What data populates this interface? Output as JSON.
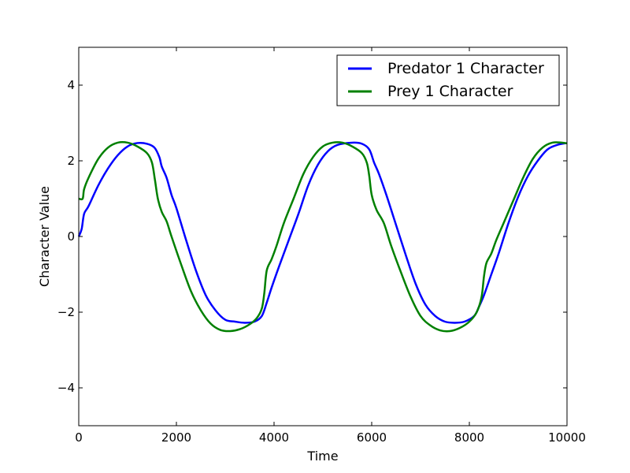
{
  "chart_data": {
    "type": "line",
    "xlabel": "Time",
    "ylabel": "Character Value",
    "xlim": [
      0,
      10000
    ],
    "ylim": [
      -5,
      5
    ],
    "xticks": [
      0,
      2000,
      4000,
      6000,
      8000,
      10000
    ],
    "yticks": [
      -4,
      -2,
      0,
      2,
      4
    ],
    "xtick_labels": [
      "0",
      "2000",
      "4000",
      "6000",
      "8000",
      "10000"
    ],
    "ytick_labels": [
      "−4",
      "−2",
      "0",
      "2",
      "4"
    ],
    "grid": false,
    "legend_position": "top-right",
    "series": [
      {
        "name": "Predator 1 Character",
        "color": "#0000ff",
        "points": [
          [
            0,
            0.0
          ],
          [
            60,
            0.2
          ],
          [
            110,
            0.6
          ],
          [
            200,
            0.8
          ],
          [
            400,
            1.35
          ],
          [
            600,
            1.8
          ],
          [
            800,
            2.15
          ],
          [
            1000,
            2.38
          ],
          [
            1200,
            2.47
          ],
          [
            1400,
            2.45
          ],
          [
            1550,
            2.35
          ],
          [
            1650,
            2.1
          ],
          [
            1700,
            1.85
          ],
          [
            1800,
            1.55
          ],
          [
            1900,
            1.1
          ],
          [
            2000,
            0.75
          ],
          [
            2200,
            -0.1
          ],
          [
            2400,
            -0.9
          ],
          [
            2600,
            -1.55
          ],
          [
            2800,
            -1.95
          ],
          [
            3000,
            -2.2
          ],
          [
            3200,
            -2.25
          ],
          [
            3400,
            -2.28
          ],
          [
            3600,
            -2.25
          ],
          [
            3750,
            -2.1
          ],
          [
            3850,
            -1.75
          ],
          [
            3950,
            -1.35
          ],
          [
            4100,
            -0.8
          ],
          [
            4300,
            -0.1
          ],
          [
            4500,
            0.6
          ],
          [
            4700,
            1.35
          ],
          [
            4900,
            1.9
          ],
          [
            5100,
            2.25
          ],
          [
            5300,
            2.42
          ],
          [
            5600,
            2.48
          ],
          [
            5800,
            2.45
          ],
          [
            5950,
            2.3
          ],
          [
            6050,
            1.95
          ],
          [
            6150,
            1.65
          ],
          [
            6300,
            1.1
          ],
          [
            6500,
            0.3
          ],
          [
            6700,
            -0.5
          ],
          [
            6900,
            -1.25
          ],
          [
            7100,
            -1.8
          ],
          [
            7300,
            -2.1
          ],
          [
            7500,
            -2.25
          ],
          [
            7700,
            -2.28
          ],
          [
            7900,
            -2.25
          ],
          [
            8100,
            -2.1
          ],
          [
            8200,
            -1.85
          ],
          [
            8300,
            -1.55
          ],
          [
            8450,
            -1.0
          ],
          [
            8600,
            -0.45
          ],
          [
            8800,
            0.35
          ],
          [
            9000,
            1.05
          ],
          [
            9200,
            1.6
          ],
          [
            9400,
            2.0
          ],
          [
            9600,
            2.3
          ],
          [
            9800,
            2.42
          ],
          [
            10000,
            2.47
          ]
        ]
      },
      {
        "name": "Prey 1 Character",
        "color": "#008000",
        "points": [
          [
            0,
            1.0
          ],
          [
            80,
            1.0
          ],
          [
            110,
            1.25
          ],
          [
            200,
            1.55
          ],
          [
            400,
            2.05
          ],
          [
            600,
            2.35
          ],
          [
            800,
            2.48
          ],
          [
            1000,
            2.48
          ],
          [
            1200,
            2.38
          ],
          [
            1400,
            2.2
          ],
          [
            1500,
            1.95
          ],
          [
            1560,
            1.5
          ],
          [
            1620,
            1.0
          ],
          [
            1700,
            0.65
          ],
          [
            1800,
            0.4
          ],
          [
            1900,
            0.0
          ],
          [
            2100,
            -0.75
          ],
          [
            2300,
            -1.45
          ],
          [
            2500,
            -1.95
          ],
          [
            2700,
            -2.3
          ],
          [
            2900,
            -2.47
          ],
          [
            3100,
            -2.5
          ],
          [
            3300,
            -2.45
          ],
          [
            3500,
            -2.32
          ],
          [
            3650,
            -2.15
          ],
          [
            3750,
            -1.9
          ],
          [
            3800,
            -1.5
          ],
          [
            3850,
            -0.9
          ],
          [
            3950,
            -0.6
          ],
          [
            4050,
            -0.25
          ],
          [
            4200,
            0.35
          ],
          [
            4400,
            1.0
          ],
          [
            4600,
            1.65
          ],
          [
            4800,
            2.1
          ],
          [
            5000,
            2.38
          ],
          [
            5200,
            2.48
          ],
          [
            5400,
            2.48
          ],
          [
            5600,
            2.38
          ],
          [
            5800,
            2.2
          ],
          [
            5900,
            1.95
          ],
          [
            5950,
            1.6
          ],
          [
            6000,
            1.1
          ],
          [
            6100,
            0.7
          ],
          [
            6250,
            0.35
          ],
          [
            6400,
            -0.25
          ],
          [
            6600,
            -0.95
          ],
          [
            6800,
            -1.6
          ],
          [
            7000,
            -2.1
          ],
          [
            7200,
            -2.35
          ],
          [
            7400,
            -2.48
          ],
          [
            7600,
            -2.5
          ],
          [
            7800,
            -2.42
          ],
          [
            8000,
            -2.25
          ],
          [
            8150,
            -2.0
          ],
          [
            8250,
            -1.6
          ],
          [
            8300,
            -1.05
          ],
          [
            8350,
            -0.7
          ],
          [
            8450,
            -0.45
          ],
          [
            8550,
            -0.1
          ],
          [
            8700,
            0.35
          ],
          [
            8900,
            0.95
          ],
          [
            9100,
            1.55
          ],
          [
            9300,
            2.05
          ],
          [
            9500,
            2.35
          ],
          [
            9700,
            2.48
          ],
          [
            9900,
            2.48
          ],
          [
            10000,
            2.46
          ]
        ]
      }
    ]
  }
}
